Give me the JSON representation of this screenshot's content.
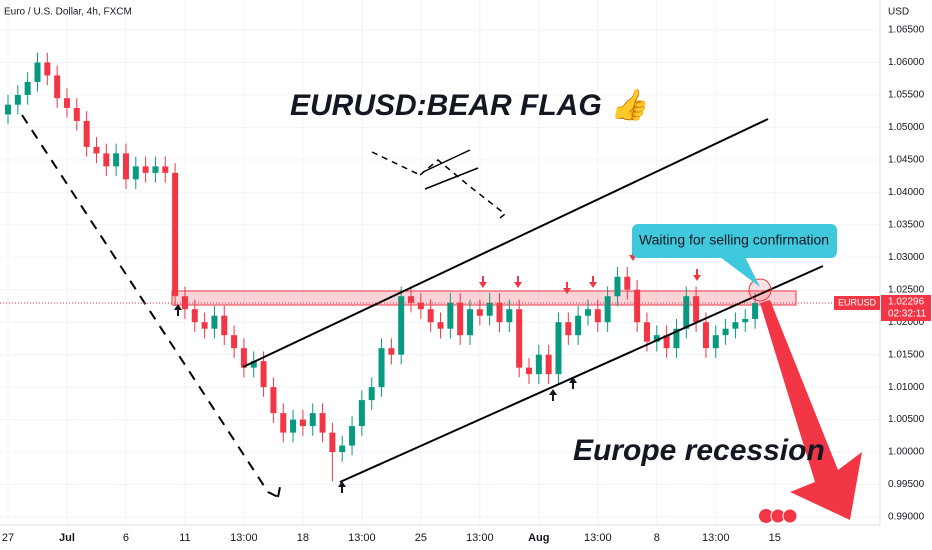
{
  "chart_data": {
    "type": "candlestick",
    "title": "Euro / U.S. Dollar, 4h, FXCM",
    "y_axis_label": "USD",
    "annotations": [
      "EURUSD:BEAR FLAG 👍",
      "Waiting for selling confirmation",
      "Europe recession"
    ],
    "categories": [
      "27",
      null,
      null,
      null,
      null,
      null,
      "Jul",
      null,
      null,
      null,
      null,
      null,
      "6",
      null,
      null,
      null,
      null,
      null,
      "11",
      null,
      null,
      null,
      null,
      null,
      "13:00",
      null,
      null,
      null,
      null,
      null,
      "18",
      null,
      null,
      null,
      null,
      null,
      "13:00",
      null,
      null,
      null,
      null,
      null,
      "25",
      null,
      null,
      null,
      null,
      null,
      "13:00",
      null,
      null,
      null,
      null,
      null,
      "Aug",
      null,
      null,
      null,
      null,
      null,
      "13:00",
      null,
      null,
      null,
      null,
      null,
      "8",
      null,
      null,
      null,
      null,
      null,
      "13:00",
      null,
      null,
      null,
      null,
      null,
      "15"
    ],
    "open": [
      1.052,
      1.0535,
      1.055,
      1.057,
      1.06,
      1.058,
      1.0545,
      1.053,
      1.051,
      1.047,
      1.046,
      1.044,
      1.046,
      1.042,
      1.044,
      1.043,
      1.044,
      1.043,
      1.024,
      1.022,
      1.02,
      1.019,
      1.021,
      1.018,
      1.016,
      1.013,
      1.014,
      1.01,
      1.006,
      1.003,
      1.005,
      1.004,
      1.006,
      1.003,
      1.0,
      1.001,
      1.004,
      1.008,
      1.01,
      1.016,
      1.015,
      1.024,
      1.023,
      1.022,
      1.02,
      1.019,
      1.023,
      1.018,
      1.022,
      1.021,
      1.023,
      1.02,
      1.022,
      1.013,
      1.012,
      1.015,
      1.012,
      1.02,
      1.018,
      1.021,
      1.022,
      1.02,
      1.024,
      1.027,
      1.025,
      1.02,
      1.017,
      1.018,
      1.016,
      1.019,
      1.024,
      1.02,
      1.016,
      1.018,
      1.019,
      1.02,
      1.0205,
      null,
      null
    ],
    "high": [
      1.055,
      1.0565,
      1.0585,
      1.0615,
      1.0615,
      1.0595,
      1.056,
      1.0545,
      1.0525,
      1.0485,
      1.0475,
      1.0475,
      1.0475,
      1.0455,
      1.0455,
      1.0455,
      1.0455,
      1.0445,
      1.0255,
      1.0235,
      1.0215,
      1.0225,
      1.0225,
      1.0195,
      1.0175,
      1.0155,
      1.0155,
      1.0115,
      1.0075,
      1.0065,
      1.0065,
      1.0075,
      1.0075,
      1.0045,
      1.0025,
      1.0055,
      1.0095,
      1.0115,
      1.0175,
      1.0175,
      1.0255,
      1.0255,
      1.0245,
      1.0235,
      1.0215,
      1.0245,
      1.0245,
      1.0235,
      1.0235,
      1.0245,
      1.0245,
      1.0235,
      1.0235,
      1.0145,
      1.0165,
      1.0165,
      1.0215,
      1.0215,
      1.0225,
      1.0235,
      1.0235,
      1.0255,
      1.0285,
      1.0285,
      1.0265,
      1.0215,
      1.0195,
      1.0195,
      1.0205,
      1.0255,
      1.0255,
      1.0215,
      1.0195,
      1.0205,
      1.0215,
      1.022,
      1.0245,
      null,
      null
    ],
    "low": [
      1.0505,
      1.052,
      1.0535,
      1.0555,
      1.0565,
      1.053,
      1.0515,
      1.0495,
      1.0455,
      1.0445,
      1.0425,
      1.0425,
      1.0405,
      1.0405,
      1.0415,
      1.0415,
      1.0415,
      1.0225,
      1.0205,
      1.0185,
      1.0175,
      1.0175,
      1.0165,
      1.0145,
      1.0115,
      1.0115,
      1.0085,
      1.0045,
      1.0015,
      1.0015,
      1.0025,
      1.0025,
      1.0015,
      0.9955,
      0.9985,
      0.9995,
      1.0025,
      1.0065,
      1.0085,
      1.0135,
      1.0135,
      1.0215,
      1.0205,
      1.0185,
      1.0175,
      1.0175,
      1.0165,
      1.0165,
      1.0195,
      1.0195,
      1.0185,
      1.0185,
      1.0115,
      1.0105,
      1.0105,
      1.0105,
      1.0105,
      1.0165,
      1.0165,
      1.0195,
      1.0185,
      1.0185,
      1.0225,
      1.0235,
      1.0185,
      1.0155,
      1.0155,
      1.0145,
      1.0145,
      1.0175,
      1.0185,
      1.0145,
      1.0145,
      1.0165,
      1.0175,
      1.0185,
      1.019,
      null,
      null
    ],
    "close": [
      1.0535,
      1.055,
      1.057,
      1.06,
      1.058,
      1.0545,
      1.053,
      1.051,
      1.047,
      1.046,
      1.044,
      1.046,
      1.042,
      1.044,
      1.043,
      1.044,
      1.043,
      1.024,
      1.022,
      1.02,
      1.019,
      1.021,
      1.018,
      1.016,
      1.013,
      1.014,
      1.01,
      1.006,
      1.003,
      1.005,
      1.004,
      1.006,
      1.003,
      1.0,
      1.001,
      1.004,
      1.008,
      1.01,
      1.016,
      1.015,
      1.024,
      1.023,
      1.022,
      1.02,
      1.019,
      1.023,
      1.018,
      1.022,
      1.021,
      1.023,
      1.02,
      1.022,
      1.013,
      1.012,
      1.015,
      1.012,
      1.02,
      1.018,
      1.021,
      1.022,
      1.02,
      1.024,
      1.027,
      1.025,
      1.02,
      1.017,
      1.018,
      1.016,
      1.019,
      1.024,
      1.02,
      1.016,
      1.018,
      1.019,
      1.02,
      1.0205,
      1.02296,
      null,
      null
    ],
    "up_color": "#089981",
    "down_color": "#f23645",
    "last_price": {
      "symbol": "EURUSD",
      "value": 1.02296,
      "label": "1.02296",
      "countdown": "02:32:11"
    },
    "ylim": [
      0.9875,
      1.0685
    ],
    "yticks": [
      {
        "value": 0.99,
        "label": "0.99000"
      },
      {
        "value": 0.995,
        "label": "0.99500"
      },
      {
        "value": 1.0,
        "label": "1.00000"
      },
      {
        "value": 1.005,
        "label": "1.00500"
      },
      {
        "value": 1.01,
        "label": "1.01000"
      },
      {
        "value": 1.015,
        "label": "1.01500"
      },
      {
        "value": 1.02,
        "label": "1.02000"
      },
      {
        "value": 1.025,
        "label": "1.02500"
      },
      {
        "value": 1.03,
        "label": "1.03000"
      },
      {
        "value": 1.035,
        "label": "1.03500"
      },
      {
        "value": 1.04,
        "label": "1.04000"
      },
      {
        "value": 1.045,
        "label": "1.04500"
      },
      {
        "value": 1.05,
        "label": "1.05000"
      },
      {
        "value": 1.055,
        "label": "1.05500"
      },
      {
        "value": 1.06,
        "label": "1.06000"
      },
      {
        "value": 1.065,
        "label": "1.06500"
      }
    ],
    "grid": true
  }
}
